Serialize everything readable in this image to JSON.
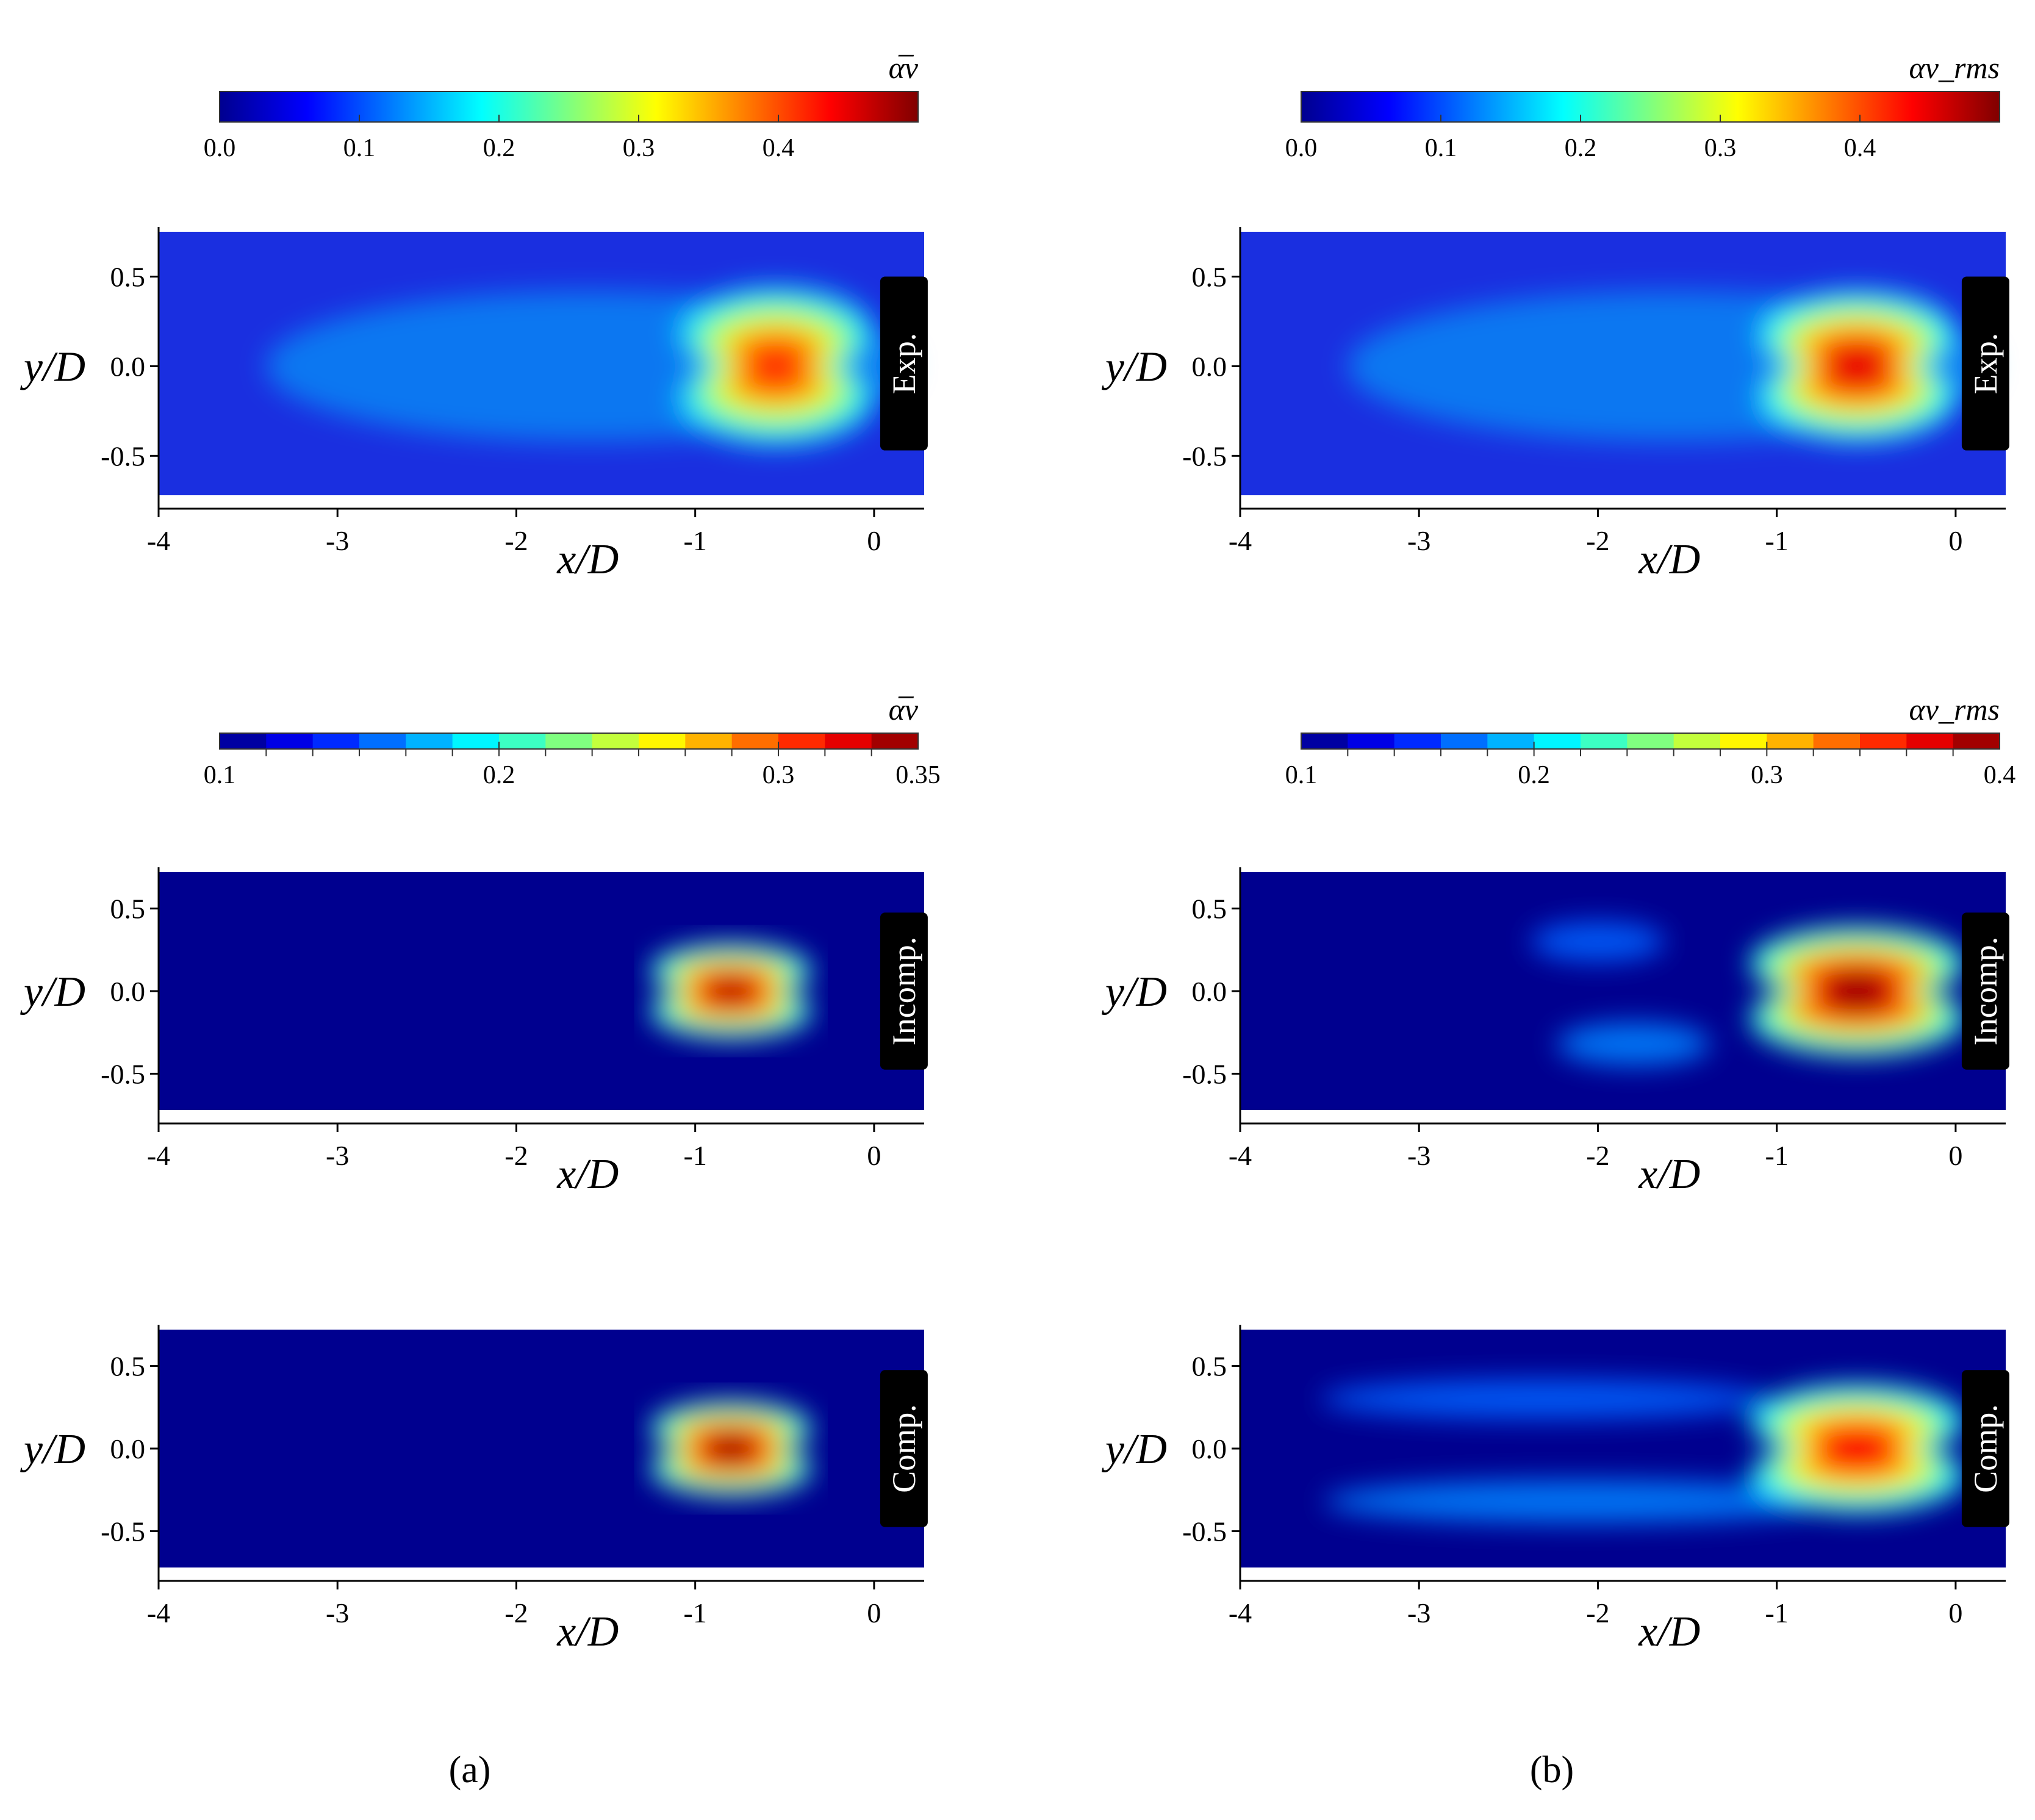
{
  "chart_data": [
    {
      "id": "a-exp",
      "type": "heatmap",
      "quantity_label": "α̅v",
      "colorbar": {
        "style": "continuous",
        "range": [
          0.0,
          0.5
        ],
        "ticks": [
          "0.0",
          "0.1",
          "0.2",
          "0.3",
          "0.4"
        ]
      },
      "tag": "Exp.",
      "xlabel": "x/D",
      "ylabel": "y/D",
      "xlim": [
        -4,
        0.28
      ],
      "ylim": [
        -0.72,
        0.75
      ],
      "xticks": [
        "-4",
        "-3",
        "-2",
        "-1",
        "0"
      ],
      "yticks": [
        "0.5",
        "0.0",
        "-0.5"
      ],
      "cavity": {
        "lobe": [
          -0.55,
          0.25,
          0.55,
          0.34
        ],
        "peak": 0.42,
        "wake_tail": [
          -3.6,
          0.12
        ]
      }
    },
    {
      "id": "b-exp",
      "type": "heatmap",
      "quantity_label": "αv_rms",
      "colorbar": {
        "style": "continuous",
        "range": [
          0.0,
          0.5
        ],
        "ticks": [
          "0.0",
          "0.1",
          "0.2",
          "0.3",
          "0.4"
        ]
      },
      "tag": "Exp.",
      "xlabel": "x/D",
      "ylabel": "y/D",
      "xlim": [
        -4,
        0.28
      ],
      "ylim": [
        -0.72,
        0.75
      ],
      "xticks": [
        "-4",
        "-3",
        "-2",
        "-1",
        "0"
      ],
      "yticks": [
        "0.5",
        "0.0",
        "-0.5"
      ],
      "cavity": {
        "lobe": [
          -0.55,
          0.25,
          0.55,
          0.32
        ],
        "peak": 0.46,
        "wake_tail": [
          -3.6,
          0.16
        ]
      }
    },
    {
      "id": "a-incomp",
      "type": "heatmap",
      "quantity_label": "α̅v",
      "colorbar": {
        "style": "discrete",
        "range": [
          0.1,
          0.35
        ],
        "ticks": [
          "0.1",
          "0.2",
          "0.3",
          "0.35"
        ]
      },
      "tag": "Incomp.",
      "xlabel": "x/D",
      "ylabel": "y/D",
      "xlim": [
        -4,
        0.28
      ],
      "ylim": [
        -0.72,
        0.72
      ],
      "xticks": [
        "-4",
        "-3",
        "-2",
        "-1",
        "0"
      ],
      "yticks": [
        "0.5",
        "0.0",
        "-0.5"
      ],
      "cavity": {
        "lobe": [
          -0.8,
          0.22,
          0.45,
          0.22
        ],
        "peak": 0.34
      }
    },
    {
      "id": "b-incomp",
      "type": "heatmap",
      "quantity_label": "αv_rms",
      "colorbar": {
        "style": "discrete",
        "range": [
          0.1,
          0.4
        ],
        "ticks": [
          "0.1",
          "0.2",
          "0.3",
          "0.4"
        ]
      },
      "tag": "Incomp.",
      "xlabel": "x/D",
      "ylabel": "y/D",
      "xlim": [
        -4,
        0.28
      ],
      "ylim": [
        -0.72,
        0.72
      ],
      "xticks": [
        "-4",
        "-3",
        "-2",
        "-1",
        "0"
      ],
      "yticks": [
        "0.5",
        "0.0",
        "-0.5"
      ],
      "cavity": {
        "lobe": [
          -0.55,
          0.28,
          0.6,
          0.3
        ],
        "peak": 0.4,
        "shed": [
          -2.3,
          -1.7
        ]
      }
    },
    {
      "id": "a-comp",
      "type": "heatmap",
      "quantity_label": "α̅v",
      "colorbar": {
        "style": "discrete",
        "range": [
          0.1,
          0.35
        ],
        "ticks": [
          "0.1",
          "0.2",
          "0.3",
          "0.35"
        ]
      },
      "tag": "Comp.",
      "xlabel": "x/D",
      "ylabel": "y/D",
      "xlim": [
        -4,
        0.28
      ],
      "ylim": [
        -0.72,
        0.72
      ],
      "xticks": [
        "-4",
        "-3",
        "-2",
        "-1",
        "0"
      ],
      "yticks": [
        "0.5",
        "0.0",
        "-0.5"
      ],
      "cavity": {
        "lobe": [
          -0.8,
          0.22,
          0.45,
          0.22
        ],
        "peak": 0.35
      }
    },
    {
      "id": "b-comp",
      "type": "heatmap",
      "quantity_label": "αv_rms",
      "colorbar": {
        "style": "discrete",
        "range": [
          0.1,
          0.4
        ],
        "ticks": [
          "0.1",
          "0.2",
          "0.3",
          "0.4"
        ]
      },
      "tag": "Comp.",
      "xlabel": "x/D",
      "ylabel": "y/D",
      "xlim": [
        -4,
        0.28
      ],
      "ylim": [
        -0.72,
        0.72
      ],
      "xticks": [
        "-4",
        "-3",
        "-2",
        "-1",
        "0"
      ],
      "yticks": [
        "0.5",
        "0.0",
        "-0.5"
      ],
      "cavity": {
        "lobe": [
          -0.55,
          0.28,
          0.6,
          0.3
        ],
        "peak": 0.36,
        "shed": [
          -3.3,
          -1.3
        ]
      }
    }
  ],
  "captions": {
    "left": "(a)",
    "right": "(b)"
  }
}
